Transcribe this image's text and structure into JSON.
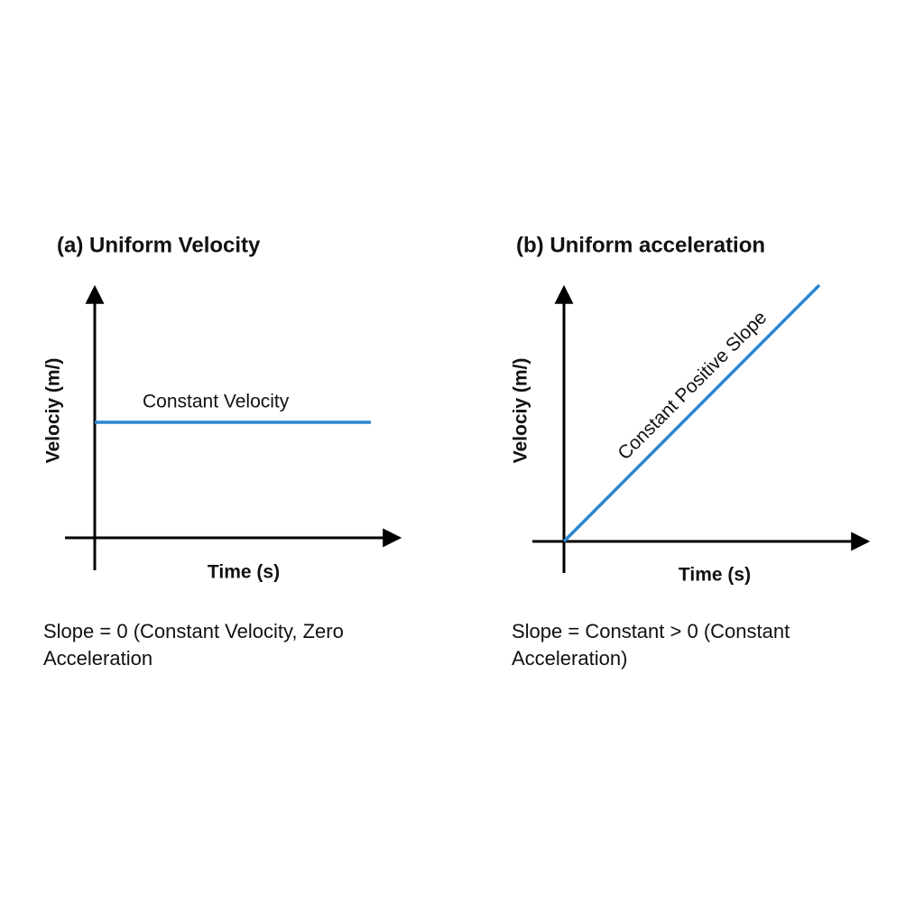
{
  "panels": [
    {
      "title": "(a) Uniform Velocity",
      "y_label": "Velociy (m/)",
      "x_label": "Time (s)",
      "line_label": "Constant Velocity",
      "caption": [
        "Slope = 0 (Constant Velocity, Zero",
        "Acceleration"
      ]
    },
    {
      "title": "(b) Uniform acceleration",
      "y_label": "Velociy (m/)",
      "x_label": "Time (s)",
      "line_label": "Constant Positive Slope",
      "caption": [
        "Slope = Constant > 0 (Constant",
        "Acceleration)"
      ]
    }
  ]
}
